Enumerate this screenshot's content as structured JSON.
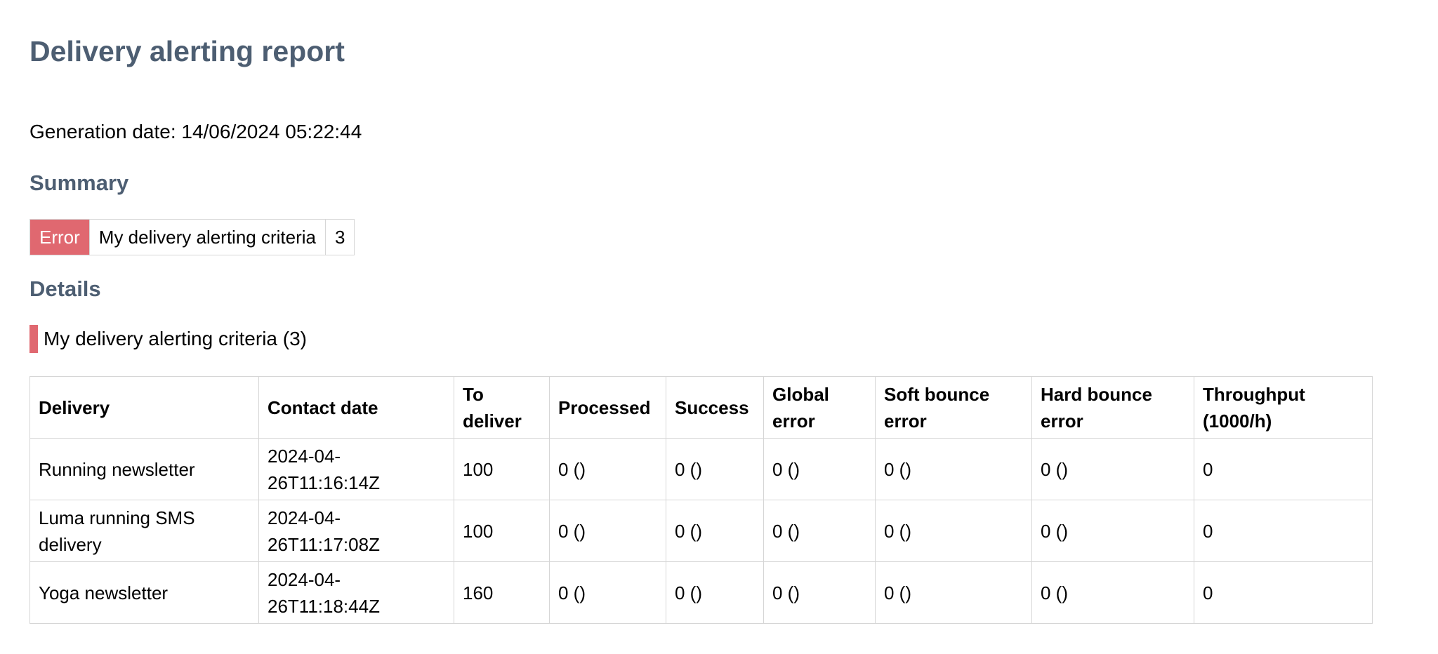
{
  "report": {
    "title": "Delivery alerting report",
    "generation_date": "Generation date: 14/06/2024 05:22:44"
  },
  "summary": {
    "heading": "Summary",
    "status": "Error",
    "criteria": "My delivery alerting criteria",
    "count": "3"
  },
  "details": {
    "heading": "Details",
    "criteria_title": "My delivery alerting criteria (3)",
    "columns": [
      "Delivery",
      "Contact date",
      "To deliver",
      "Processed",
      "Success",
      "Global error",
      "Soft bounce error",
      "Hard bounce error",
      "Throughput (1000/h)"
    ],
    "rows": [
      [
        "Running newsletter",
        "2024-04-26T11:16:14Z",
        "100",
        "0 ()",
        "0 ()",
        "0 ()",
        "0 ()",
        "0 ()",
        "0"
      ],
      [
        "Luma running SMS delivery",
        "2024-04-26T11:17:08Z",
        "100",
        "0 ()",
        "0 ()",
        "0 ()",
        "0 ()",
        "0 ()",
        "0"
      ],
      [
        "Yoga newsletter",
        "2024-04-26T11:18:44Z",
        "160",
        "0 ()",
        "0 ()",
        "0 ()",
        "0 ()",
        "0 ()",
        "0"
      ]
    ]
  },
  "colors": {
    "heading": "#4d5e72",
    "error": "#e06870",
    "border": "#d6d6d6"
  }
}
